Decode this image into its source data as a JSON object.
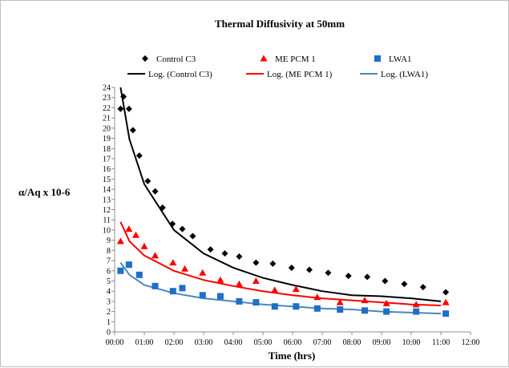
{
  "chart_data": {
    "type": "scatter",
    "title": "Thermal Diffusivity at 50mm",
    "xlabel": "Time (hrs)",
    "ylabel": "α/Aq x 10-6",
    "x_unit": "hh:mm",
    "xlim": [
      "00:00",
      "12:00"
    ],
    "ylim": [
      0,
      24
    ],
    "x_ticks": [
      "00:00",
      "01:00",
      "02:00",
      "03:00",
      "04:00",
      "05:00",
      "06:00",
      "07:00",
      "08:00",
      "09:00",
      "10:00",
      "11:00",
      "12:00"
    ],
    "y_ticks": [
      0,
      1,
      2,
      3,
      4,
      5,
      6,
      7,
      8,
      9,
      10,
      11,
      12,
      13,
      14,
      15,
      16,
      17,
      18,
      19,
      20,
      21,
      22,
      23,
      24
    ],
    "grid": false,
    "legend_position": "top",
    "series": [
      {
        "name": "Control C3",
        "marker": "diamond",
        "color": "#000000",
        "points": [
          [
            "00:12",
            21.9
          ],
          [
            "00:18",
            23.1
          ],
          [
            "00:29",
            21.9
          ],
          [
            "00:37",
            19.8
          ],
          [
            "00:50",
            17.3
          ],
          [
            "01:07",
            14.8
          ],
          [
            "01:22",
            13.8
          ],
          [
            "01:37",
            12.2
          ],
          [
            "01:57",
            10.6
          ],
          [
            "02:17",
            10.1
          ],
          [
            "02:38",
            9.4
          ],
          [
            "03:14",
            8.1
          ],
          [
            "03:43",
            7.7
          ],
          [
            "04:12",
            7.4
          ],
          [
            "04:46",
            6.8
          ],
          [
            "05:20",
            6.7
          ],
          [
            "05:58",
            6.3
          ],
          [
            "06:34",
            6.1
          ],
          [
            "07:12",
            5.8
          ],
          [
            "07:53",
            5.5
          ],
          [
            "08:31",
            5.4
          ],
          [
            "09:07",
            5.0
          ],
          [
            "09:46",
            4.7
          ],
          [
            "10:24",
            4.4
          ],
          [
            "11:10",
            3.9
          ]
        ]
      },
      {
        "name": "ME PCM 1",
        "marker": "triangle",
        "color": "#ff0000",
        "points": [
          [
            "00:12",
            8.9
          ],
          [
            "00:29",
            10.1
          ],
          [
            "00:43",
            9.5
          ],
          [
            "01:00",
            8.4
          ],
          [
            "01:22",
            7.5
          ],
          [
            "01:58",
            6.8
          ],
          [
            "02:22",
            6.2
          ],
          [
            "02:58",
            5.8
          ],
          [
            "03:34",
            5.1
          ],
          [
            "04:12",
            4.7
          ],
          [
            "04:46",
            5.0
          ],
          [
            "05:24",
            4.1
          ],
          [
            "06:07",
            4.2
          ],
          [
            "06:50",
            3.4
          ],
          [
            "07:36",
            2.9
          ],
          [
            "08:26",
            3.1
          ],
          [
            "09:10",
            2.8
          ],
          [
            "10:10",
            2.7
          ],
          [
            "11:10",
            2.9
          ]
        ]
      },
      {
        "name": "LWA1",
        "marker": "square",
        "color": "#1f6fc5",
        "points": [
          [
            "00:12",
            6.0
          ],
          [
            "00:29",
            6.6
          ],
          [
            "00:50",
            5.6
          ],
          [
            "01:22",
            4.5
          ],
          [
            "01:58",
            4.0
          ],
          [
            "02:17",
            4.3
          ],
          [
            "02:58",
            3.6
          ],
          [
            "03:34",
            3.5
          ],
          [
            "04:12",
            3.0
          ],
          [
            "04:46",
            2.9
          ],
          [
            "05:24",
            2.5
          ],
          [
            "06:07",
            2.5
          ],
          [
            "06:50",
            2.3
          ],
          [
            "07:36",
            2.2
          ],
          [
            "08:26",
            2.1
          ],
          [
            "09:10",
            2.0
          ],
          [
            "10:10",
            2.0
          ],
          [
            "11:10",
            1.8
          ]
        ]
      }
    ],
    "trendlines": [
      {
        "name": "Log. (Control C3)",
        "color": "#000000",
        "points": [
          [
            "00:12",
            24.0
          ],
          [
            "00:30",
            18.9
          ],
          [
            "01:00",
            14.5
          ],
          [
            "02:00",
            10.0
          ],
          [
            "03:00",
            7.7
          ],
          [
            "04:00",
            6.3
          ],
          [
            "05:00",
            5.3
          ],
          [
            "06:00",
            4.6
          ],
          [
            "07:00",
            4.0
          ],
          [
            "08:00",
            3.6
          ],
          [
            "09:00",
            3.5
          ],
          [
            "10:00",
            3.3
          ],
          [
            "11:00",
            3.0
          ]
        ]
      },
      {
        "name": "Log. (ME PCM 1)",
        "color": "#ff0000",
        "points": [
          [
            "00:12",
            10.8
          ],
          [
            "00:30",
            8.9
          ],
          [
            "01:00",
            7.5
          ],
          [
            "02:00",
            6.0
          ],
          [
            "03:00",
            5.1
          ],
          [
            "04:00",
            4.5
          ],
          [
            "05:00",
            4.0
          ],
          [
            "06:00",
            3.6
          ],
          [
            "07:00",
            3.3
          ],
          [
            "08:00",
            3.1
          ],
          [
            "09:00",
            2.9
          ],
          [
            "10:00",
            2.7
          ],
          [
            "11:00",
            2.6
          ]
        ]
      },
      {
        "name": "Log. (LWA1)",
        "color": "#4a86c5",
        "points": [
          [
            "00:12",
            6.8
          ],
          [
            "00:30",
            5.6
          ],
          [
            "01:00",
            4.6
          ],
          [
            "02:00",
            3.8
          ],
          [
            "03:00",
            3.3
          ],
          [
            "04:00",
            3.0
          ],
          [
            "05:00",
            2.7
          ],
          [
            "06:00",
            2.5
          ],
          [
            "07:00",
            2.3
          ],
          [
            "08:00",
            2.2
          ],
          [
            "09:00",
            2.0
          ],
          [
            "10:00",
            1.9
          ],
          [
            "11:00",
            1.8
          ]
        ]
      }
    ]
  }
}
